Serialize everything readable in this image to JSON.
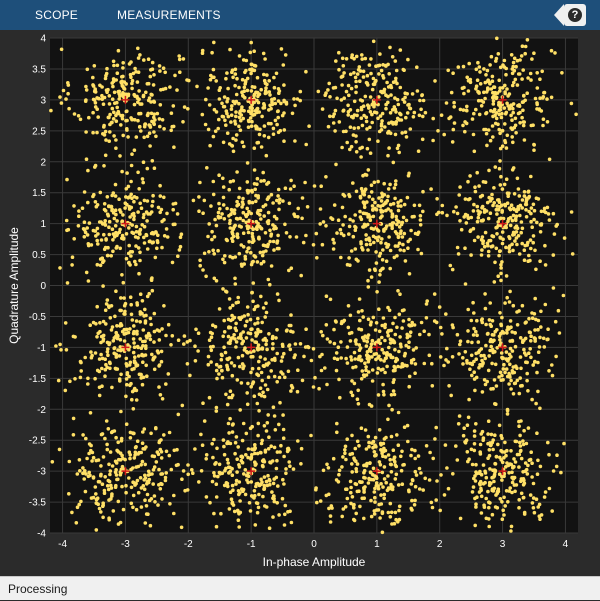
{
  "toolbar": {
    "tabs": [
      {
        "label": "SCOPE"
      },
      {
        "label": "MEASUREMENTS"
      }
    ],
    "help_label": "?"
  },
  "status": {
    "text": "Processing"
  },
  "icons": {
    "help": "help-icon"
  },
  "colors": {
    "toolstrip": "#1e4f7a",
    "background": "#2b2b2b",
    "plot_background": "#121212",
    "points": "#ffe066",
    "reference": "#d11b1b",
    "grid": "#3a3a3a"
  },
  "chart_data": {
    "type": "scatter",
    "xlabel": "In-phase Amplitude",
    "ylabel": "Quadrature Amplitude",
    "xlim": [
      -4.2,
      4.2
    ],
    "ylim": [
      -4,
      4
    ],
    "xticks": [
      -4,
      -3,
      -2,
      -1,
      0,
      1,
      2,
      3,
      4
    ],
    "yticks": [
      -4,
      -3.5,
      -3,
      -2.5,
      -2,
      -1.5,
      -1,
      -0.5,
      0,
      0.5,
      1,
      1.5,
      2,
      2.5,
      3,
      3.5,
      4
    ],
    "grid": true,
    "reference_constellation": [
      [
        -3,
        3
      ],
      [
        -1,
        3
      ],
      [
        1,
        3
      ],
      [
        3,
        3
      ],
      [
        -3,
        1
      ],
      [
        -1,
        1
      ],
      [
        1,
        1
      ],
      [
        3,
        1
      ],
      [
        -3,
        -1
      ],
      [
        -1,
        -1
      ],
      [
        1,
        -1
      ],
      [
        3,
        -1
      ],
      [
        -3,
        -3
      ],
      [
        -1,
        -3
      ],
      [
        1,
        -3
      ],
      [
        3,
        -3
      ]
    ],
    "noise_std": 0.42,
    "approx_points_per_symbol": 250
  }
}
